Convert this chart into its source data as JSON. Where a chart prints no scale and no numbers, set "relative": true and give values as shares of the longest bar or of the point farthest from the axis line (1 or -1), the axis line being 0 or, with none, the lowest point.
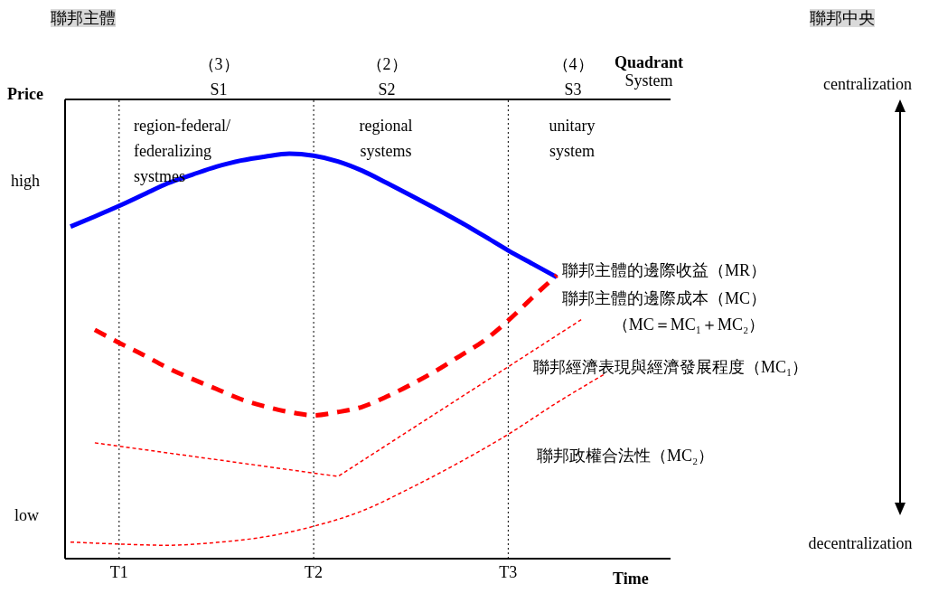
{
  "chart_data": {
    "type": "line",
    "relative": true,
    "xlabel": "Time",
    "ylabel": "Price",
    "marker": "none",
    "categories": [
      null,
      null,
      "T1",
      null,
      null,
      null,
      null,
      null,
      null,
      null,
      "T2",
      null,
      null,
      null,
      null,
      null,
      null,
      null,
      "T3",
      null,
      null,
      null,
      null
    ],
    "ref_lines": [
      {
        "axis": "x",
        "value": "T1",
        "line_style": "dotted",
        "color": "#000000"
      },
      {
        "axis": "x",
        "value": "T2",
        "line_style": "dotted",
        "color": "#000000"
      },
      {
        "axis": "x",
        "value": "T3",
        "line_style": "dotted",
        "color": "#000000"
      }
    ],
    "annotations": [
      "聯邦主體",
      "聯邦中央",
      "centralization",
      "decentralization",
      "Quadrant\nSystem",
      "region-federal/\nfederalizing\nsystmes",
      "regional\nsystems",
      "unitary\nsystem",
      "high",
      "low",
      "（MC＝MC₁＋MC₂）",
      "（3）\nS1",
      "（2）\nS2",
      "（4）\nS3"
    ],
    "series": [
      {
        "name": "聯邦主體的邊際收益（MR）",
        "color": "#0000ff",
        "line_style": "solid",
        "values": [
          0.82,
          0.845,
          0.871,
          0.899,
          0.927,
          0.948,
          0.968,
          0.983,
          0.993,
          1.0,
          0.995,
          0.981,
          0.958,
          0.928,
          0.897,
          0.865,
          0.832,
          0.797,
          0.761,
          0.728,
          0.695,
          null,
          null
        ]
      },
      {
        "name": "聯邦主體的邊際成本（MC）",
        "color": "#ff0000",
        "line_style": "dashed",
        "values": [
          null,
          0.565,
          0.533,
          0.503,
          0.471,
          0.444,
          0.419,
          0.394,
          0.376,
          0.362,
          0.354,
          0.362,
          0.375,
          0.4,
          0.43,
          0.463,
          0.5,
          0.538,
          0.588,
          0.645,
          0.7,
          null,
          null
        ]
      },
      {
        "name": "聯邦經濟表現與經濟發展程度（MC₁）",
        "color": "#ff0000",
        "line_style": "dashed",
        "values": [
          null,
          0.286,
          null,
          null,
          null,
          null,
          null,
          null,
          null,
          null,
          null,
          0.203,
          null,
          null,
          null,
          null,
          null,
          null,
          null,
          null,
          null,
          0.59,
          null
        ]
      },
      {
        "name": "聯邦政權合法性（MC₂）",
        "color": "#ff0000",
        "line_style": "dashed",
        "values": [
          0.041,
          null,
          0.036,
          null,
          0.033,
          null,
          0.04,
          null,
          0.054,
          null,
          0.08,
          null,
          0.118,
          null,
          0.175,
          null,
          0.238,
          null,
          0.307,
          null,
          0.385,
          null,
          0.457
        ]
      }
    ]
  }
}
